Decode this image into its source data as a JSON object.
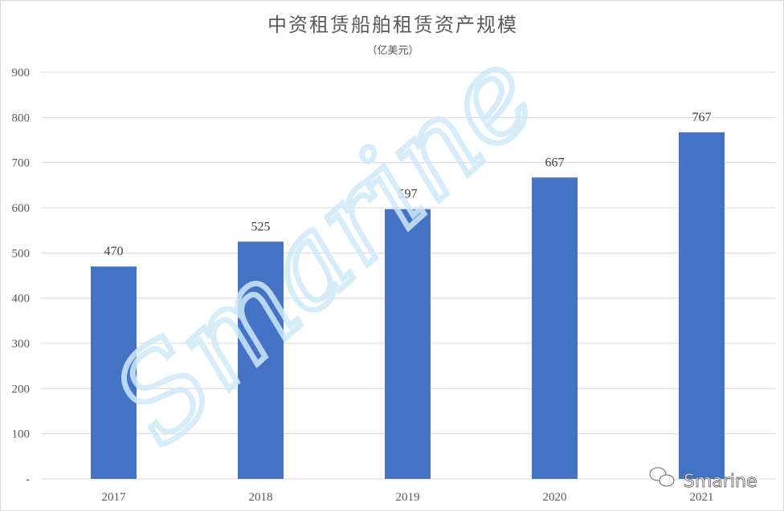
{
  "chart_data": {
    "type": "bar",
    "title": "中资租赁船舶租赁资产规模",
    "subtitle": "（亿美元）",
    "categories": [
      "2017",
      "2018",
      "2019",
      "2020",
      "2021"
    ],
    "values": [
      470,
      525,
      597,
      667,
      767
    ],
    "ylim": [
      0,
      900
    ],
    "yticks": [
      0,
      100,
      200,
      300,
      400,
      500,
      600,
      700,
      800,
      900
    ],
    "ytick_labels": [
      "-",
      "100",
      "200",
      "300",
      "400",
      "500",
      "600",
      "700",
      "800",
      "900"
    ],
    "grid": true,
    "bar_color": "#4472C4",
    "data_labels": true
  },
  "watermark": {
    "text": "Smarine"
  },
  "logo": {
    "text": "Smarine",
    "icon": "wechat-icon"
  }
}
